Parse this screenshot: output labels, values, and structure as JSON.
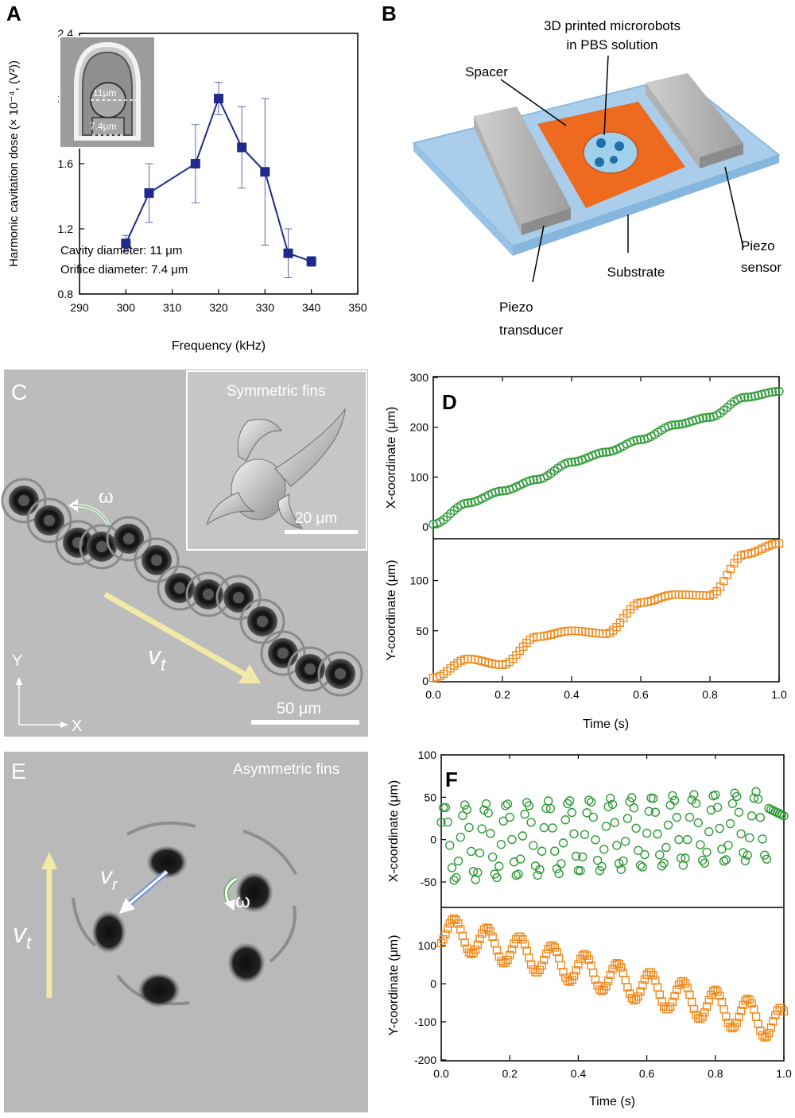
{
  "colors": {
    "navy": "#1f2a8a",
    "green": "#2e9b37",
    "orange": "#f08a1c",
    "glass": "#a9cdea",
    "spacer": "#ee6a1f",
    "piezo": "#bdbdbd",
    "micro_bg": "#b9b9b9",
    "arrow_yellow": "#f2e9a8"
  },
  "panelA": {
    "letter": "A",
    "inset_labels": [
      "11μm",
      "7.4μm"
    ],
    "annotations": [
      "Cavity diameter: 11 μm",
      "Orifice diameter: 7.4 μm"
    ],
    "chart_data": {
      "type": "scatter",
      "xlabel": "Frequency (kHz)",
      "ylabel": "Harmonic cavitation dose (× 10⁻⁴, (V²))",
      "xlim": [
        290,
        350
      ],
      "ylim": [
        0.8,
        2.4
      ],
      "xticks": [
        290,
        300,
        310,
        320,
        330,
        340,
        350
      ],
      "yticks": [
        0.8,
        1.2,
        1.6,
        2.0,
        2.4
      ],
      "x": [
        300,
        305,
        315,
        320,
        325,
        330,
        335,
        340
      ],
      "y": [
        1.11,
        1.42,
        1.6,
        2.0,
        1.7,
        1.55,
        1.05,
        1.0
      ],
      "err": [
        0.05,
        0.18,
        0.24,
        0.1,
        0.25,
        0.45,
        0.15,
        0.03
      ]
    }
  },
  "panelB": {
    "letter": "B",
    "labels": {
      "microrobots_line1": "3D printed microrobots",
      "microrobots_line2": "in PBS solution",
      "spacer": "Spacer",
      "substrate": "Substrate",
      "piezo_sensor_line1": "Piezo",
      "piezo_sensor_line2": "sensor",
      "piezo_transducer_line1": "Piezo",
      "piezo_transducer_line2": "transducer"
    }
  },
  "panelC": {
    "letter": "C",
    "inset_title": "Symmetric fins",
    "inset_scale": "20 μm",
    "scale": "50 μm",
    "omega": "ω",
    "vt": "v",
    "vt_sub": "t",
    "axis_x": "X",
    "axis_y": "Y"
  },
  "panelD": {
    "letter": "D",
    "chart_data": [
      {
        "type": "scatter",
        "ylabel": "X-coordinate (μm)",
        "ylim": [
          0,
          300
        ],
        "yticks": [
          0,
          100,
          200,
          300
        ],
        "xlim": [
          0,
          1.0
        ],
        "marker": "circle",
        "n_points": 100,
        "description_points": {
          "x": [
            0,
            0.1,
            0.2,
            0.3,
            0.4,
            0.5,
            0.6,
            0.7,
            0.8,
            0.9,
            1.0
          ],
          "y": [
            5,
            48,
            72,
            95,
            130,
            150,
            175,
            205,
            220,
            260,
            272
          ]
        }
      },
      {
        "type": "scatter",
        "ylabel": "Y-coordinate (μm)",
        "xlabel": "Time (s)",
        "ylim": [
          0,
          140
        ],
        "yticks": [
          0,
          50,
          100
        ],
        "xlim": [
          0,
          1.0
        ],
        "xticks": [
          0.0,
          0.2,
          0.4,
          0.6,
          0.8,
          1.0
        ],
        "marker": "square",
        "n_points": 100,
        "description_points": {
          "x": [
            0,
            0.1,
            0.2,
            0.3,
            0.4,
            0.5,
            0.6,
            0.7,
            0.8,
            0.9,
            1.0
          ],
          "y": [
            3,
            22,
            16,
            44,
            50,
            47,
            78,
            86,
            85,
            126,
            137
          ]
        }
      }
    ]
  },
  "panelE": {
    "letter": "E",
    "title": "Asymmetric fins",
    "omega": "ω",
    "vr": "v",
    "vr_sub": "r",
    "vt": "v",
    "vt_sub": "t"
  },
  "panelF": {
    "letter": "F",
    "chart_data": [
      {
        "type": "scatter",
        "ylabel": "X-coordinate (μm)",
        "ylim": [
          -80,
          100
        ],
        "yticks": [
          -50,
          0,
          50,
          100
        ],
        "xlim": [
          0,
          1.0
        ],
        "marker": "circle",
        "n_points": 160,
        "oscillation": {
          "cycles": 16.5,
          "amplitude_start": 45,
          "amplitude_end": 40,
          "center_start": -5,
          "center_end": 18,
          "final_value": 37
        }
      },
      {
        "type": "scatter",
        "ylabel": "Y-coordinate (μm)",
        "xlabel": "Time (s)",
        "ylim": [
          -200,
          200
        ],
        "yticks": [
          -200,
          -100,
          0,
          100
        ],
        "xlim": [
          0,
          1.0
        ],
        "xticks": [
          0.0,
          0.2,
          0.4,
          0.6,
          0.8,
          1.0
        ],
        "marker": "square",
        "n_points": 160,
        "oscillation": {
          "cycles": 10.5,
          "amplitude_start": 40,
          "amplitude_end": 45,
          "center_start": 140,
          "center_end": -110
        }
      }
    ]
  }
}
